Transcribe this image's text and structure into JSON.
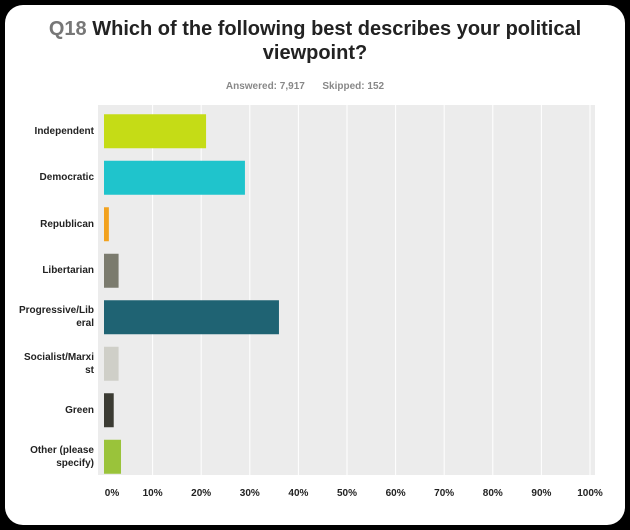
{
  "header": {
    "qnum": "Q18",
    "question": "Which of the following best describes your political viewpoint?"
  },
  "meta": {
    "answered_label": "Answered:",
    "answered_value": "7,917",
    "skipped_label": "Skipped:",
    "skipped_value": "152"
  },
  "chart_data": {
    "type": "bar",
    "orientation": "horizontal",
    "title": "Q18 Which of the following best describes your political viewpoint?",
    "categories": [
      "Independent",
      "Democratic",
      "Republican",
      "Libertarian",
      "Progressive/Liberal",
      "Socialist/Marxist",
      "Green",
      "Other (please specify)"
    ],
    "category_labels": [
      [
        "Independent"
      ],
      [
        "Democratic"
      ],
      [
        "Republican"
      ],
      [
        "Libertarian"
      ],
      [
        "Progressive/Lib",
        "eral"
      ],
      [
        "Socialist/Marxi",
        "st"
      ],
      [
        "Green"
      ],
      [
        "Other (please",
        "specify)"
      ]
    ],
    "values": [
      21,
      29,
      1,
      3,
      36,
      3,
      2,
      3.5
    ],
    "colors": [
      "#c5dc16",
      "#1fc4cc",
      "#f2a21e",
      "#7b7b6e",
      "#1f6373",
      "#cfcfc8",
      "#3b3b33",
      "#9ac33a"
    ],
    "xlim": [
      0,
      100
    ],
    "x_ticks": [
      "0%",
      "10%",
      "20%",
      "30%",
      "40%",
      "50%",
      "60%",
      "70%",
      "80%",
      "90%",
      "100%"
    ],
    "grid": true
  }
}
